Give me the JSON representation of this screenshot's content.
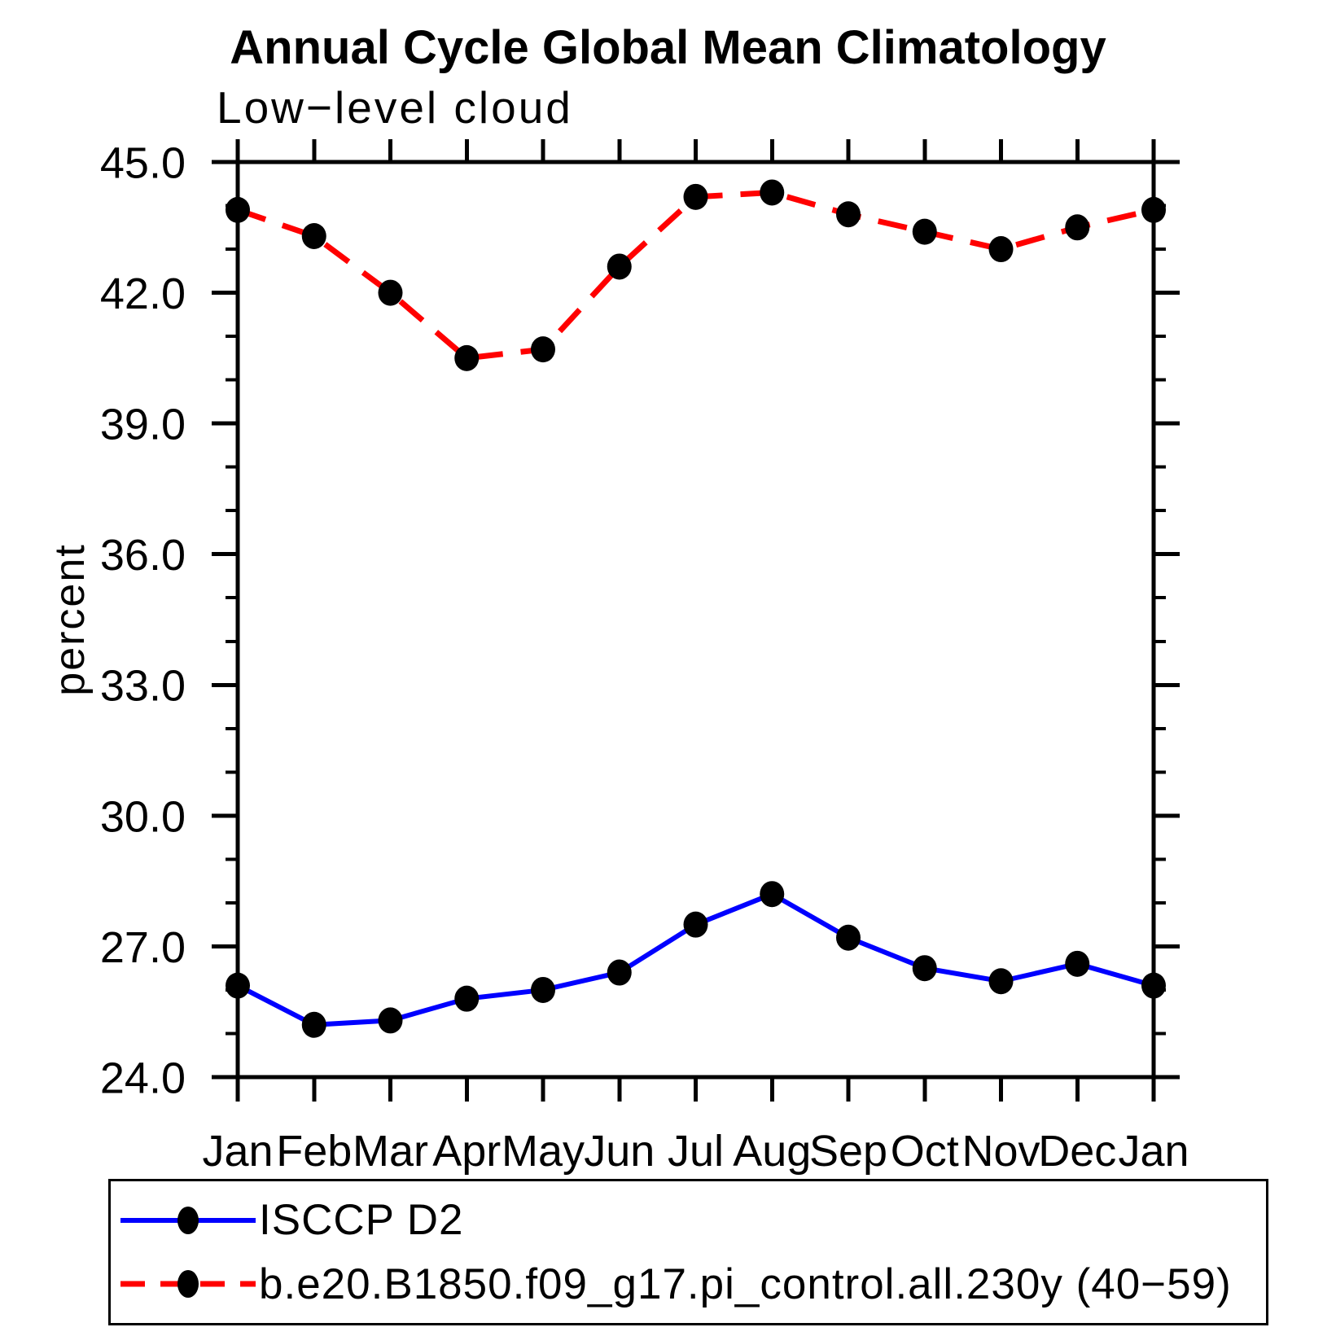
{
  "title": "Annual Cycle Global Mean Climatology",
  "subtitle": "Low−level cloud",
  "ylabel": "percent",
  "legend": {
    "entries": [
      {
        "label": "ISCCP D2",
        "color": "#0000ff",
        "style": "solid",
        "marker_color": "#000000"
      },
      {
        "label": "b.e20.B1850.f09_g17.pi_control.all.230y (40−59)",
        "color": "#ff0000",
        "style": "dashed",
        "marker_color": "#000000"
      }
    ]
  },
  "chart_data": {
    "type": "line",
    "title": "Annual Cycle Global Mean Climatology",
    "subtitle": "Low-level cloud",
    "xlabel": "",
    "ylabel": "percent",
    "categories": [
      "Jan",
      "Feb",
      "Mar",
      "Apr",
      "May",
      "Jun",
      "Jul",
      "Aug",
      "Sep",
      "Oct",
      "Nov",
      "Dec",
      "Jan"
    ],
    "series": [
      {
        "name": "ISCCP D2",
        "color": "#0000ff",
        "line_style": "solid",
        "marker": "filled-circle",
        "marker_color": "#000000",
        "values": [
          26.1,
          25.2,
          25.3,
          25.8,
          26.0,
          26.4,
          27.5,
          28.2,
          27.2,
          26.5,
          26.2,
          26.6,
          26.1
        ]
      },
      {
        "name": "b.e20.B1850.f09_g17.pi_control.all.230y (40-59)",
        "color": "#ff0000",
        "line_style": "dashed",
        "marker": "filled-circle",
        "marker_color": "#000000",
        "values": [
          43.9,
          43.3,
          42.0,
          40.5,
          40.7,
          42.6,
          44.2,
          44.3,
          43.8,
          43.4,
          43.0,
          43.5,
          43.9
        ]
      }
    ],
    "ylim": [
      24.0,
      45.0
    ],
    "ytick_major": [
      24.0,
      27.0,
      30.0,
      33.0,
      36.0,
      39.0,
      42.0,
      45.0
    ],
    "ytick_labels": [
      "24.0",
      "27.0",
      "30.0",
      "33.0",
      "36.0",
      "39.0",
      "42.0",
      "45.0"
    ],
    "ytick_minor_step": 1.0,
    "grid": false,
    "legend_position": "bottom"
  }
}
